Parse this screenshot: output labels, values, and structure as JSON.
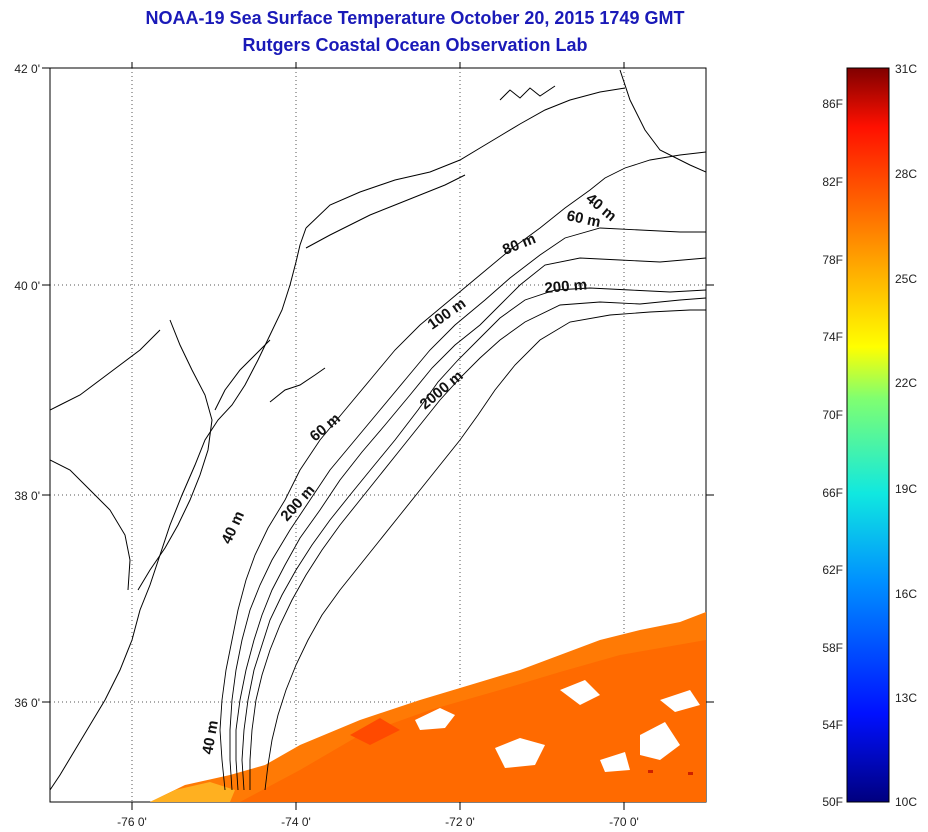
{
  "header": {
    "title": "NOAA-19 Sea Surface Temperature October 20, 2015 1749 GMT",
    "subtitle": "Rutgers Coastal Ocean Observation Lab"
  },
  "map": {
    "lon_labels": [
      "-76 0'",
      "-74 0'",
      "-72 0'",
      "-70 0'"
    ],
    "lat_labels": [
      "42 0'",
      "40 0'",
      "38 0'",
      "36 0'"
    ],
    "contour_labels": [
      "40 m",
      "60 m",
      "80 m",
      "200 m",
      "100 m",
      "2000 m",
      "60 m",
      "200 m",
      "40 m",
      "40 m"
    ],
    "sst_colors": [
      "#ff6a00",
      "#ff7f00",
      "#ff5a00",
      "#ff9a10",
      "#ffb020"
    ]
  },
  "colorbar": {
    "top_label": "31C",
    "bottom_left_label": "50F",
    "bottom_right_label": "10C",
    "fahrenheit": [
      "86F",
      "82F",
      "78F",
      "74F",
      "70F",
      "66F",
      "62F",
      "58F",
      "54F"
    ],
    "celsius": [
      "28C",
      "25C",
      "22C",
      "19C",
      "16C",
      "13C"
    ]
  }
}
